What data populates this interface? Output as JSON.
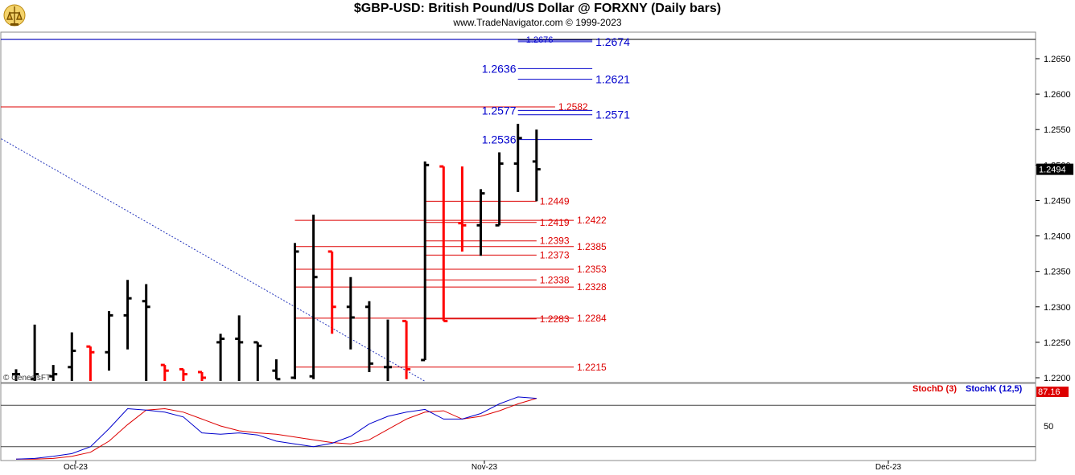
{
  "header": {
    "title": "$GBP-USD:  British Pound/US Dollar @ FORXNY  (Daily bars)",
    "subtitle": "www.TradeNavigator.com © 1999-2023"
  },
  "watermark": "© GenesisFT",
  "colors": {
    "up": "#000000",
    "down": "#ff0000",
    "blue": "#0000cc",
    "red": "#dd0000"
  },
  "chart_data": [
    {
      "type": "bar",
      "subtype": "ohlc",
      "price_axis": {
        "range": [
          1.219,
          1.268
        ],
        "ticks": [
          "1.2650",
          "1.2600",
          "1.2550",
          "1.2500",
          "1.2450",
          "1.2400",
          "1.2350",
          "1.2300",
          "1.2250",
          "1.2200"
        ],
        "last_price_label": "1.2494"
      },
      "x_axis": {
        "labels": [
          "Oct-23",
          "Nov-23",
          "Dec-23"
        ]
      },
      "bars": [
        {
          "o": 1.2205,
          "h": 1.2212,
          "l": 1.2195,
          "c": 1.2205,
          "color": "up"
        },
        {
          "o": 1.2198,
          "h": 1.2275,
          "l": 1.2195,
          "c": 1.2205,
          "color": "up"
        },
        {
          "o": 1.2202,
          "h": 1.2218,
          "l": 1.2195,
          "c": 1.2205,
          "color": "up"
        },
        {
          "o": 1.2215,
          "h": 1.2264,
          "l": 1.2195,
          "c": 1.2238,
          "color": "up"
        },
        {
          "o": 1.2244,
          "h": 1.2244,
          "l": 1.2195,
          "c": 1.2236,
          "color": "down"
        },
        {
          "o": 1.2236,
          "h": 1.2294,
          "l": 1.221,
          "c": 1.2288,
          "color": "up"
        },
        {
          "o": 1.2288,
          "h": 1.2338,
          "l": 1.224,
          "c": 1.2312,
          "color": "up"
        },
        {
          "o": 1.2308,
          "h": 1.2332,
          "l": 1.2195,
          "c": 1.23,
          "color": "up"
        },
        {
          "o": 1.2218,
          "h": 1.2218,
          "l": 1.2195,
          "c": 1.221,
          "color": "down"
        },
        {
          "o": 1.2212,
          "h": 1.2212,
          "l": 1.2195,
          "c": 1.2205,
          "color": "down"
        },
        {
          "o": 1.2208,
          "h": 1.2208,
          "l": 1.2195,
          "c": 1.22,
          "color": "down"
        },
        {
          "o": 1.225,
          "h": 1.2262,
          "l": 1.2195,
          "c": 1.2255,
          "color": "up"
        },
        {
          "o": 1.2255,
          "h": 1.2288,
          "l": 1.2195,
          "c": 1.225,
          "color": "up"
        },
        {
          "o": 1.225,
          "h": 1.225,
          "l": 1.2195,
          "c": 1.2245,
          "color": "up"
        },
        {
          "o": 1.221,
          "h": 1.2226,
          "l": 1.2198,
          "c": 1.2198,
          "color": "up"
        },
        {
          "o": 1.22,
          "h": 1.239,
          "l": 1.2198,
          "c": 1.2378,
          "color": "up"
        },
        {
          "o": 1.2202,
          "h": 1.243,
          "l": 1.2198,
          "c": 1.2342,
          "color": "up"
        },
        {
          "o": 1.2378,
          "h": 1.2378,
          "l": 1.2262,
          "c": 1.23,
          "color": "down"
        },
        {
          "o": 1.23,
          "h": 1.2342,
          "l": 1.224,
          "c": 1.2285,
          "color": "up"
        },
        {
          "o": 1.23,
          "h": 1.2308,
          "l": 1.2208,
          "c": 1.222,
          "color": "up"
        },
        {
          "o": 1.2215,
          "h": 1.2282,
          "l": 1.2195,
          "c": 1.2215,
          "color": "up"
        },
        {
          "o": 1.228,
          "h": 1.228,
          "l": 1.2198,
          "c": 1.2212,
          "color": "down"
        },
        {
          "o": 1.2225,
          "h": 1.2505,
          "l": 1.2225,
          "c": 1.25,
          "color": "up"
        },
        {
          "o": 1.2498,
          "h": 1.2498,
          "l": 1.228,
          "c": 1.228,
          "color": "down"
        },
        {
          "o": 1.2418,
          "h": 1.2498,
          "l": 1.2378,
          "c": 1.2415,
          "color": "down"
        },
        {
          "o": 1.2415,
          "h": 1.2466,
          "l": 1.2372,
          "c": 1.246,
          "color": "up"
        },
        {
          "o": 1.2415,
          "h": 1.2518,
          "l": 1.2415,
          "c": 1.2502,
          "color": "up"
        },
        {
          "o": 1.2502,
          "h": 1.2558,
          "l": 1.2462,
          "c": 1.2538,
          "color": "up"
        },
        {
          "o": 1.2505,
          "h": 1.255,
          "l": 1.2449,
          "c": 1.2494,
          "color": "up"
        }
      ],
      "trendline": {
        "from_bar": -2,
        "from_price": 1.2555,
        "to_bar": 22,
        "to_price": 1.2195
      },
      "levels": [
        {
          "value": "1.2677",
          "price": 1.2677,
          "color": "blue",
          "from_bar": -20,
          "to_bar": 27,
          "label_side": "left",
          "big": true
        },
        {
          "value": "1.2676",
          "price": 1.2676,
          "color": "blue",
          "from_bar": 27,
          "to_bar": 31,
          "label_side": "left",
          "big": false
        },
        {
          "value": "1.2674",
          "price": 1.2674,
          "color": "blue",
          "from_bar": 27,
          "to_bar": 31,
          "label_side": "right",
          "big": true
        },
        {
          "value": "1.2636",
          "price": 1.2636,
          "color": "blue",
          "from_bar": 27,
          "to_bar": 31,
          "label_side": "left",
          "big": true
        },
        {
          "value": "1.2621",
          "price": 1.2621,
          "color": "blue",
          "from_bar": 27,
          "to_bar": 31,
          "label_side": "right",
          "big": true
        },
        {
          "value": "1.2582",
          "price": 1.2582,
          "color": "red",
          "from_bar": -20,
          "to_bar": 29,
          "label_side": "right",
          "big": false
        },
        {
          "value": "1.2577",
          "price": 1.2577,
          "color": "blue",
          "from_bar": 27,
          "to_bar": 31,
          "label_side": "left",
          "big": true
        },
        {
          "value": "1.2571",
          "price": 1.2571,
          "color": "blue",
          "from_bar": 27,
          "to_bar": 31,
          "label_side": "right",
          "big": true
        },
        {
          "value": "1.2536",
          "price": 1.2536,
          "color": "blue",
          "from_bar": 27,
          "to_bar": 31,
          "label_side": "left",
          "big": true
        },
        {
          "value": "1.2449",
          "price": 1.2449,
          "color": "red",
          "from_bar": 22,
          "to_bar": 28,
          "label_side": "right",
          "big": false
        },
        {
          "value": "1.2422",
          "price": 1.2422,
          "color": "red",
          "from_bar": 15,
          "to_bar": 30,
          "label_side": "right",
          "big": false
        },
        {
          "value": "1.2419",
          "price": 1.2419,
          "color": "red",
          "from_bar": 22,
          "to_bar": 28,
          "label_side": "right",
          "big": false
        },
        {
          "value": "1.2393",
          "price": 1.2393,
          "color": "red",
          "from_bar": 22,
          "to_bar": 28,
          "label_side": "right",
          "big": false
        },
        {
          "value": "1.2385",
          "price": 1.2385,
          "color": "red",
          "from_bar": 15,
          "to_bar": 30,
          "label_side": "right",
          "big": false
        },
        {
          "value": "1.2373",
          "price": 1.2373,
          "color": "red",
          "from_bar": 22,
          "to_bar": 28,
          "label_side": "right",
          "big": false
        },
        {
          "value": "1.2353",
          "price": 1.2353,
          "color": "red",
          "from_bar": 15,
          "to_bar": 30,
          "label_side": "right",
          "big": false
        },
        {
          "value": "1.2338",
          "price": 1.2338,
          "color": "red",
          "from_bar": 22,
          "to_bar": 28,
          "label_side": "right",
          "big": false
        },
        {
          "value": "1.2328",
          "price": 1.2328,
          "color": "red",
          "from_bar": 15,
          "to_bar": 30,
          "label_side": "right",
          "big": false
        },
        {
          "value": "1.2284",
          "price": 1.2284,
          "color": "red",
          "from_bar": 15,
          "to_bar": 30,
          "label_side": "right",
          "big": false
        },
        {
          "value": "1.2283",
          "price": 1.2283,
          "color": "red",
          "from_bar": 22,
          "to_bar": 28,
          "label_side": "right",
          "big": false
        },
        {
          "value": "1.2215",
          "price": 1.2215,
          "color": "red",
          "from_bar": 15,
          "to_bar": 30,
          "label_side": "right",
          "big": false
        }
      ]
    },
    {
      "type": "line",
      "indicator_range": [
        0,
        100
      ],
      "ticks": [
        "50"
      ],
      "reference_levels": [
        80,
        20
      ],
      "last_value_label": "87.16",
      "series": [
        {
          "name": "StochD (3)",
          "color": "#dd0000",
          "x": [
            0,
            1,
            2,
            3,
            4,
            5,
            6,
            7,
            8,
            9,
            10,
            11,
            12,
            13,
            14,
            15,
            16,
            17,
            18,
            19,
            20,
            21,
            22,
            23,
            24,
            25,
            26,
            27,
            28
          ],
          "values": [
            2,
            2,
            3,
            6,
            12,
            28,
            52,
            73,
            75,
            70,
            60,
            50,
            43,
            40,
            38,
            34,
            30,
            26,
            24,
            30,
            45,
            60,
            70,
            72,
            60,
            64,
            72,
            82,
            90
          ]
        },
        {
          "name": "StochK (12,5)",
          "color": "#0000cc",
          "x": [
            0,
            1,
            2,
            3,
            4,
            5,
            6,
            7,
            8,
            9,
            10,
            11,
            12,
            13,
            14,
            15,
            16,
            17,
            18,
            19,
            20,
            21,
            22,
            23,
            24,
            25,
            26,
            27,
            28
          ],
          "values": [
            2,
            3,
            6,
            10,
            20,
            46,
            75,
            73,
            70,
            63,
            40,
            38,
            40,
            37,
            28,
            24,
            20,
            25,
            35,
            53,
            64,
            70,
            74,
            60,
            60,
            68,
            82,
            92,
            90
          ]
        }
      ]
    }
  ]
}
